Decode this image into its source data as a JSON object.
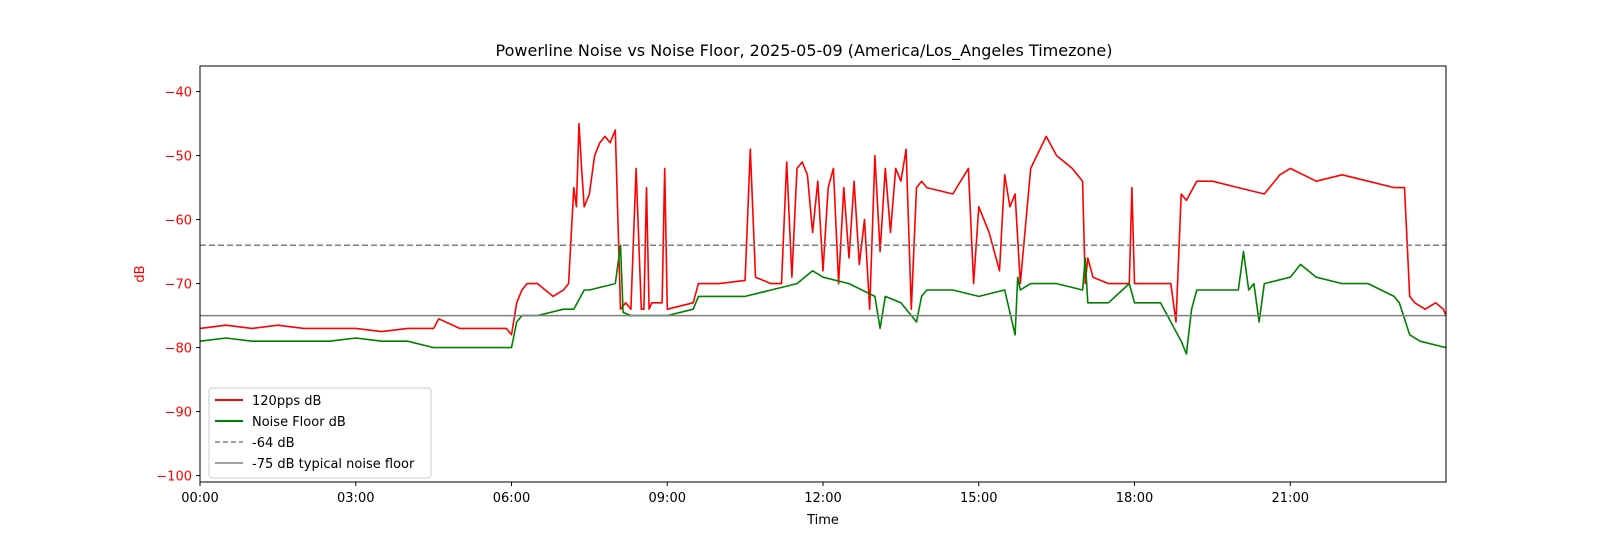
{
  "chart_data": {
    "type": "line",
    "title": "Powerline Noise vs Noise Floor, 2025-05-09 (America/Los_Angeles Timezone)",
    "xlabel": "Time",
    "ylabel": "dB",
    "xlim": [
      0,
      24
    ],
    "ylim": [
      -101,
      -36
    ],
    "x_ticks": [
      "00:00",
      "03:00",
      "06:00",
      "09:00",
      "12:00",
      "15:00",
      "18:00",
      "21:00"
    ],
    "y_ticks": [
      -40,
      -50,
      -60,
      -70,
      -80,
      -90,
      -100
    ],
    "grid": false,
    "legend_position": "lower-left",
    "colors": {
      "pps": "#ff0000",
      "floor": "#008000",
      "ref": "#808080",
      "ylabel": "#ff0000"
    },
    "series": [
      {
        "name": "120pps dB",
        "color": "#ff0000",
        "x": [
          0,
          0.5,
          1,
          1.5,
          2,
          2.5,
          3,
          3.5,
          4,
          4.5,
          4.6,
          5,
          5.5,
          5.9,
          6.0,
          6.1,
          6.2,
          6.3,
          6.5,
          6.8,
          7.0,
          7.1,
          7.2,
          7.25,
          7.3,
          7.35,
          7.4,
          7.5,
          7.6,
          7.7,
          7.8,
          7.9,
          8.0,
          8.1,
          8.2,
          8.3,
          8.4,
          8.5,
          8.55,
          8.6,
          8.65,
          8.7,
          8.8,
          8.9,
          8.95,
          9.0,
          9.5,
          9.6,
          10.0,
          10.5,
          10.6,
          10.7,
          11.0,
          11.2,
          11.3,
          11.4,
          11.5,
          11.6,
          11.7,
          11.8,
          11.9,
          12.0,
          12.1,
          12.2,
          12.3,
          12.4,
          12.5,
          12.6,
          12.7,
          12.8,
          12.9,
          13.0,
          13.1,
          13.2,
          13.3,
          13.4,
          13.5,
          13.6,
          13.7,
          13.8,
          13.9,
          14.0,
          14.5,
          14.8,
          14.9,
          15.0,
          15.2,
          15.4,
          15.5,
          15.6,
          15.7,
          15.8,
          16.0,
          16.3,
          16.5,
          16.8,
          17.0,
          17.05,
          17.1,
          17.2,
          17.5,
          17.9,
          17.95,
          18.0,
          18.5,
          18.7,
          18.8,
          18.9,
          19.0,
          19.2,
          19.5,
          20.0,
          20.5,
          20.8,
          21.0,
          21.5,
          22.0,
          22.5,
          23.0,
          23.2,
          23.3,
          23.4,
          23.6,
          23.8,
          23.95,
          24
        ],
        "values": [
          -77,
          -76.5,
          -77,
          -76.5,
          -77,
          -77,
          -77,
          -77.5,
          -77,
          -77,
          -75.5,
          -77,
          -77,
          -77,
          -78,
          -73,
          -71,
          -70,
          -70,
          -72,
          -71,
          -70,
          -55,
          -58,
          -45,
          -52,
          -58,
          -56,
          -50,
          -48,
          -47,
          -48,
          -46,
          -74,
          -73,
          -74,
          -52,
          -74,
          -74,
          -55,
          -74,
          -73,
          -73,
          -73,
          -52,
          -74,
          -73,
          -70,
          -70,
          -69.5,
          -49,
          -69,
          -70,
          -70,
          -51,
          -69,
          -52,
          -51,
          -53,
          -62,
          -54,
          -68,
          -55,
          -52,
          -70,
          -55,
          -66,
          -54,
          -67,
          -60,
          -74,
          -50,
          -65,
          -52,
          -62,
          -52,
          -54,
          -49,
          -74,
          -55,
          -54,
          -55,
          -56,
          -52,
          -70,
          -58,
          -62,
          -68,
          -53,
          -58,
          -56,
          -70,
          -52,
          -47,
          -50,
          -52,
          -54,
          -70,
          -66,
          -69,
          -70,
          -70,
          -55,
          -70,
          -70,
          -70,
          -76,
          -56,
          -57,
          -54,
          -54,
          -55,
          -56,
          -53,
          -52,
          -54,
          -53,
          -54,
          -55,
          -55,
          -72,
          -73,
          -74,
          -73,
          -74,
          -75
        ]
      },
      {
        "name": "Noise Floor dB",
        "color": "#008000",
        "x": [
          0,
          0.5,
          1,
          1.5,
          2,
          2.5,
          3,
          3.5,
          4,
          4.5,
          5,
          5.5,
          6.0,
          6.1,
          6.2,
          6.5,
          7.0,
          7.2,
          7.4,
          7.5,
          8.0,
          8.1,
          8.15,
          8.3,
          8.5,
          9.0,
          9.5,
          9.6,
          10,
          10.5,
          11,
          11.5,
          11.8,
          12,
          12.5,
          13,
          13.1,
          13.2,
          13.5,
          13.8,
          13.9,
          14,
          14.5,
          15,
          15.5,
          15.7,
          15.75,
          15.8,
          16,
          16.5,
          17,
          17.05,
          17.1,
          17.5,
          17.9,
          18,
          18.5,
          18.9,
          19.0,
          19.1,
          19.2,
          19.5,
          20,
          20.1,
          20.2,
          20.3,
          20.4,
          20.5,
          21,
          21.2,
          21.5,
          22,
          22.5,
          23,
          23.1,
          23.3,
          23.5,
          24
        ],
        "values": [
          -79,
          -78.5,
          -79,
          -79,
          -79,
          -79,
          -78.5,
          -79,
          -79,
          -80,
          -80,
          -80,
          -80,
          -76,
          -75,
          -75,
          -74,
          -74,
          -71,
          -71,
          -70,
          -64,
          -74.5,
          -75,
          -75,
          -75,
          -74,
          -72,
          -72,
          -72,
          -71,
          -70,
          -68,
          -69,
          -70,
          -72,
          -77,
          -72,
          -73,
          -76,
          -72,
          -71,
          -71,
          -72,
          -71,
          -78,
          -69,
          -71,
          -70,
          -70,
          -71,
          -66,
          -73,
          -73,
          -70,
          -73,
          -73,
          -79,
          -81,
          -74,
          -71,
          -71,
          -71,
          -65,
          -71,
          -70,
          -76,
          -70,
          -69,
          -67,
          -69,
          -70,
          -70,
          -72,
          -73,
          -78,
          -79,
          -80
        ]
      },
      {
        "name": "-64 dB",
        "color": "#808080",
        "style": "dashed",
        "x": [
          0,
          24
        ],
        "values": [
          -64,
          -64
        ]
      },
      {
        "name": "-75 dB typical noise floor",
        "color": "#808080",
        "style": "solid",
        "x": [
          0,
          24
        ],
        "values": [
          -75,
          -75
        ]
      }
    ]
  }
}
